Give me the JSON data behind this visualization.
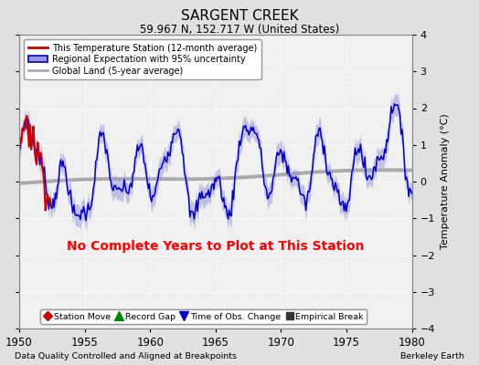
{
  "title": "SARGENT CREEK",
  "subtitle": "59.967 N, 152.717 W (United States)",
  "xlabel_bottom": "Data Quality Controlled and Aligned at Breakpoints",
  "xlabel_right": "Berkeley Earth",
  "ylabel": "Temperature Anomaly (°C)",
  "annotation": "No Complete Years to Plot at This Station",
  "annotation_color": "#ff0000",
  "xlim": [
    1950,
    1980
  ],
  "ylim": [
    -4,
    4
  ],
  "xticks": [
    1950,
    1955,
    1960,
    1965,
    1970,
    1975,
    1980
  ],
  "yticks": [
    -4,
    -3,
    -2,
    -1,
    0,
    1,
    2,
    3,
    4
  ],
  "background_color": "#e0e0e0",
  "plot_bg_color": "#f0f0f0",
  "grid_color": "#ffffff",
  "regional_line_color": "#0000cc",
  "regional_fill_color": "#9999dd",
  "station_line_color": "#cc0000",
  "global_line_color": "#aaaaaa",
  "legend1_items": [
    {
      "label": "This Temperature Station (12-month average)",
      "color": "#cc0000",
      "lw": 2
    },
    {
      "label": "Regional Expectation with 95% uncertainty",
      "color": "#0000cc",
      "fill": "#9999dd"
    },
    {
      "label": "Global Land (5-year average)",
      "color": "#aaaaaa",
      "lw": 2
    }
  ],
  "marker_legend": [
    {
      "label": "Station Move",
      "color": "#cc0000",
      "marker": "D"
    },
    {
      "label": "Record Gap",
      "color": "#008800",
      "marker": "^"
    },
    {
      "label": "Time of Obs. Change",
      "color": "#0000cc",
      "marker": "v"
    },
    {
      "label": "Empirical Break",
      "color": "#333333",
      "marker": "s"
    }
  ]
}
